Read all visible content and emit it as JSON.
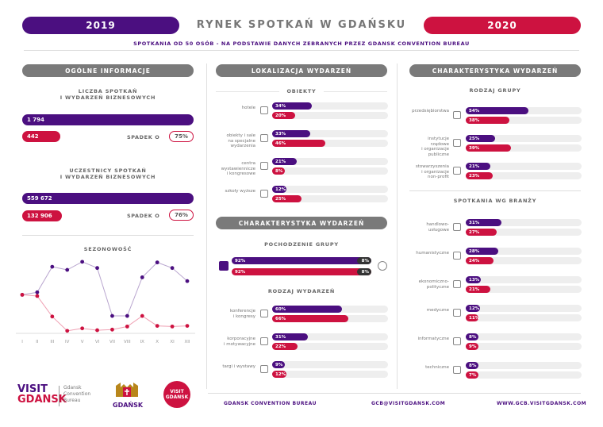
{
  "header": {
    "year_left": "2019",
    "title": "RYNEK SPOTKAŃ W GDAŃSKU",
    "year_right": "2020",
    "subtitle": "SPOTKANIA OD 50 OSÓB - NA PODSTAWIE DANYCH ZEBRANYCH PRZEZ GDANSK CONVENTION BUREAU"
  },
  "colors": {
    "purple": "#4b0f80",
    "red": "#cd1240",
    "grey": "#7a7a7a"
  },
  "col1": {
    "head": "OGÓLNE INFORMACJE",
    "meetings": {
      "label_1": "LICZBA SPOTKAŃ",
      "label_2": "I WYDARZEŃ BIZNESOWYCH",
      "v2019": "1 794",
      "v2020": "442",
      "spadek_label": "SPADEK O",
      "spadek_value": "75%"
    },
    "participants": {
      "label_1": "UCZESTNICY SPOTKAŃ",
      "label_2": "I WYDARZEŃ BIZNESOWYCH",
      "v2019": "559 672",
      "v2020": "132 906",
      "spadek_label": "SPADEK O",
      "spadek_value": "76%"
    },
    "seasonality_head": "SEZONOWOŚĆ"
  },
  "chart_data": {
    "type": "line",
    "title": "SEZONOWOŚĆ",
    "categories": [
      "I",
      "II",
      "III",
      "IV",
      "V",
      "VI",
      "VII",
      "VIII",
      "IX",
      "X",
      "XI",
      "XII"
    ],
    "series": [
      {
        "values": [
          62,
          66,
          107,
          102,
          115,
          105,
          28,
          28,
          90,
          114,
          105,
          84
        ]
      },
      {
        "values": [
          62,
          60,
          27,
          4,
          8,
          5,
          6,
          11,
          28,
          12,
          11,
          12
        ]
      }
    ],
    "ylim": [
      0,
      125
    ]
  },
  "col2": {
    "head": "LOKALIZACJA WYDARZEŃ",
    "obiekty_head": "OBIEKTY",
    "rows": [
      {
        "label": [
          "hotele"
        ],
        "a": 34,
        "b": 20,
        "icon": "hotel-icon"
      },
      {
        "label": [
          "obiekty i sale",
          "na specjalne",
          "wydarzenia"
        ],
        "a": 33,
        "b": 46,
        "icon": "venue-icon"
      },
      {
        "label": [
          "centra",
          "wystawiennicze",
          "i kongresowe"
        ],
        "a": 21,
        "b": 8,
        "icon": "congress-center-icon"
      },
      {
        "label": [
          "szkoły wyższe"
        ],
        "a": 12,
        "b": 25,
        "icon": "university-icon"
      }
    ],
    "char_head": "CHARAKTERYSTYKA WYDARZEŃ",
    "pochodzenie_head": "POCHODZENIE GRUPY",
    "pochodzenie": {
      "a_dom": 92,
      "a_int": 8,
      "b_dom": 92,
      "b_int": 8
    },
    "rodzaj_head": "RODZAJ WYDARZEŃ",
    "rodzaj": [
      {
        "label": [
          "konferencje",
          "i kongresy"
        ],
        "a": 60,
        "b": 66,
        "icon": "microphone-icon"
      },
      {
        "label": [
          "korporacyjne",
          "i motywacyjne"
        ],
        "a": 31,
        "b": 22,
        "icon": "briefcase-icon"
      },
      {
        "label": [
          "targi i wystawy"
        ],
        "a": 9,
        "b": 12,
        "icon": "easel-icon"
      }
    ]
  },
  "col3": {
    "head": "CHARAKTERYSTYKA WYDARZEŃ",
    "grupa_head": "RODZAJ GRUPY",
    "grupa": [
      {
        "label": [
          "przedsiębiorstwa"
        ],
        "a": 54,
        "b": 38,
        "icon": "company-icon"
      },
      {
        "label": [
          "instytucje",
          "rządowe",
          "i organizacje",
          "publiczne"
        ],
        "a": 25,
        "b": 39,
        "icon": "institution-icon"
      },
      {
        "label": [
          "stowarzyszenia",
          "i organizacje",
          "non-profit"
        ],
        "a": 21,
        "b": 23,
        "icon": "association-icon"
      }
    ],
    "branze_head": "SPOTKANIA WG BRANŻY",
    "branze": [
      {
        "label": [
          "handlowo-",
          "usługowe"
        ],
        "a": 31,
        "b": 27,
        "icon": "cart-icon"
      },
      {
        "label": [
          "humanistyczne"
        ],
        "a": 28,
        "b": 24,
        "icon": "book-icon"
      },
      {
        "label": [
          "ekonomiczno-",
          "polityczne"
        ],
        "a": 13,
        "b": 21,
        "icon": "money-icon"
      },
      {
        "label": [
          "medyczne"
        ],
        "a": 12,
        "b": 11,
        "icon": "medical-icon"
      },
      {
        "label": [
          "informatyczne"
        ],
        "a": 8,
        "b": 9,
        "icon": "computer-icon"
      },
      {
        "label": [
          "techniczne"
        ],
        "a": 8,
        "b": 7,
        "icon": "gear-icon"
      }
    ]
  },
  "footer": {
    "visit_logo": {
      "visit": "VISIT",
      "gdansk": "GDANSK",
      "lines": [
        "Gdansk",
        "Convention",
        "Bureau"
      ]
    },
    "city_logo": "GDAŃSK",
    "badge_logo": {
      "line1": "VISIT",
      "line2": "GDANSK"
    },
    "org": "GDANSK CONVENTION BUREAU",
    "email": "GCB@VISITGDANSK.COM",
    "web": "WWW.GCB.VISITGDANSK.COM"
  }
}
